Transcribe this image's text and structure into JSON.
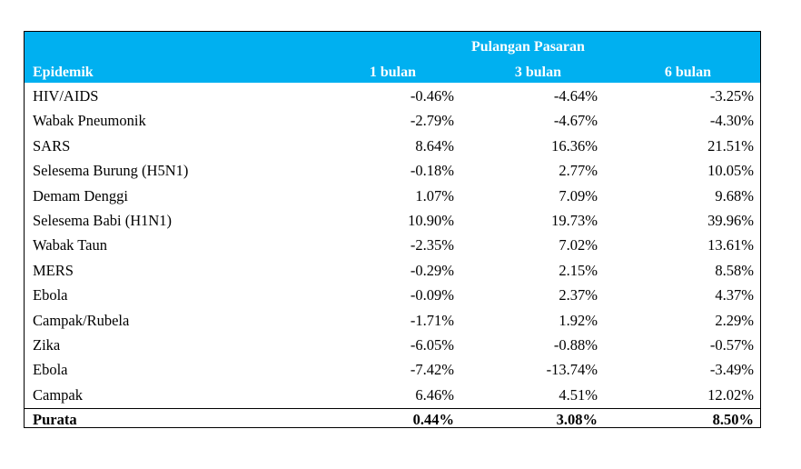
{
  "header": {
    "group_title": "Pulangan Pasaran",
    "columns": [
      "Epidemik",
      "1 bulan",
      "3 bulan",
      "6 bulan"
    ],
    "background": "#00b0f0"
  },
  "rows": [
    {
      "name": "HIV/AIDS",
      "m1": "-0.46%",
      "m3": "-4.64%",
      "m6": "-3.25%"
    },
    {
      "name": "Wabak Pneumonik",
      "m1": "-2.79%",
      "m3": "-4.67%",
      "m6": "-4.30%"
    },
    {
      "name": "SARS",
      "m1": "8.64%",
      "m3": "16.36%",
      "m6": "21.51%"
    },
    {
      "name": "Selesema Burung (H5N1)",
      "m1": "-0.18%",
      "m3": "2.77%",
      "m6": "10.05%"
    },
    {
      "name": "Demam Denggi",
      "m1": "1.07%",
      "m3": "7.09%",
      "m6": "9.68%"
    },
    {
      "name": "Selesema Babi (H1N1)",
      "m1": "10.90%",
      "m3": "19.73%",
      "m6": "39.96%"
    },
    {
      "name": "Wabak Taun",
      "m1": "-2.35%",
      "m3": "7.02%",
      "m6": "13.61%"
    },
    {
      "name": "MERS",
      "m1": "-0.29%",
      "m3": "2.15%",
      "m6": "8.58%"
    },
    {
      "name": "Ebola",
      "m1": "-0.09%",
      "m3": "2.37%",
      "m6": "4.37%"
    },
    {
      "name": "Campak/Rubela",
      "m1": "-1.71%",
      "m3": "1.92%",
      "m6": "2.29%"
    },
    {
      "name": "Zika",
      "m1": "-6.05%",
      "m3": "-0.88%",
      "m6": "-0.57%"
    },
    {
      "name": "Ebola",
      "m1": "-7.42%",
      "m3": "-13.74%",
      "m6": "-3.49%"
    },
    {
      "name": "Campak",
      "m1": "6.46%",
      "m3": "4.51%",
      "m6": "12.02%"
    }
  ],
  "average": {
    "name": "Purata",
    "m1": "0.44%",
    "m3": "3.08%",
    "m6": "8.50%"
  }
}
